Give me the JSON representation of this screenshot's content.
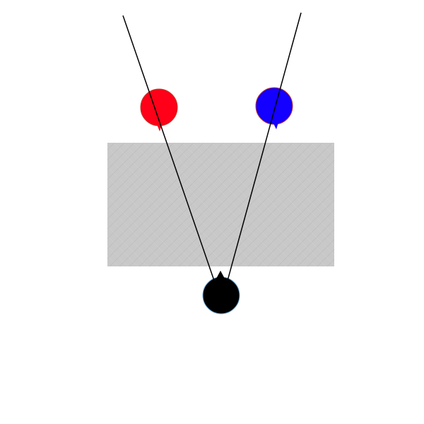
{
  "diagram": {
    "background_color": "#ffffff",
    "barrier": {
      "color": "#c8c8c8",
      "texture_color": "#b4b4b4"
    },
    "agents": [
      {
        "name": "red-ball",
        "color": "#ff0018",
        "outline": "#c0392b"
      },
      {
        "name": "blue-ball",
        "color": "#1400ff",
        "outline": "#c0392b"
      },
      {
        "name": "black-ball",
        "color": "#000000",
        "outline": "#6fa8d8"
      }
    ],
    "sight_lines": {
      "color": "#000000"
    }
  }
}
